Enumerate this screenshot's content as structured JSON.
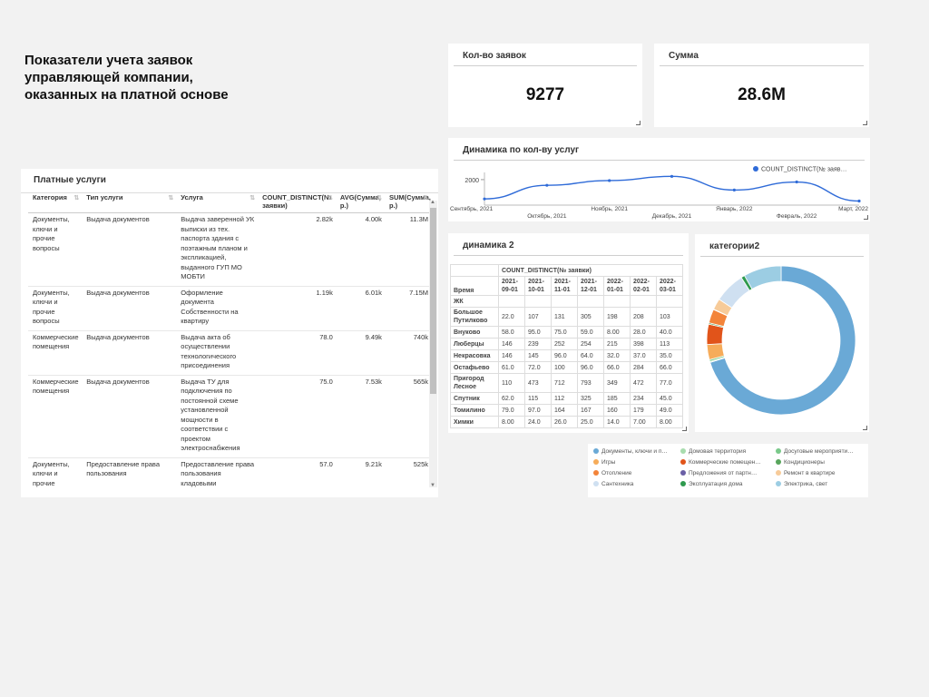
{
  "dashboard": {
    "title": "Показатели учета заявок управляющей компании, оказанных на платной основе"
  },
  "kpi_count": {
    "title": "Кол-во заявок",
    "value": "9277"
  },
  "kpi_sum": {
    "title": "Сумма",
    "value": "28.6M"
  },
  "services_table": {
    "title": "Платные услуги",
    "columns": [
      "Категория",
      "Тип услуги",
      "Услуга",
      "COUNT_DISTINCT(№ заявки)",
      "AVG(Сумма, р.)",
      "SUM(Сумма, р.)"
    ],
    "rows": [
      [
        "Документы, ключи и прочие вопросы",
        "Выдача документов",
        "Выдача заверенной УК выписки из тех. паспорта здания с поэтажным планом и экспликацией, выданного ГУП МО МОБТИ",
        "2.82k",
        "4.00k",
        "11.3M"
      ],
      [
        "Документы, ключи и прочие вопросы",
        "Выдача документов",
        "Оформление документа Собственности на квартиру",
        "1.19k",
        "6.01k",
        "7.15M"
      ],
      [
        "Коммерческие помещения",
        "Выдача документов",
        "Выдача акта об осуществлении технологического присоединения",
        "78.0",
        "9.49k",
        "740k"
      ],
      [
        "Коммерческие помещения",
        "Выдача документов",
        "Выдача ТУ для подключения по постоянной схеме установленной мощности в соответствии с проектом электроснабжения",
        "75.0",
        "7.53k",
        "565k"
      ],
      [
        "Документы, ключи и прочие вопросы",
        "Предоставление права пользования",
        "Предоставление права пользования кладовыми помещениями на территории ЖК",
        "57.0",
        "9.21k",
        "525k"
      ]
    ]
  },
  "chart_data": [
    {
      "type": "line",
      "title": "Динамика по кол-ву услуг",
      "x": [
        "Сентябрь, 2021",
        "Октябрь, 2021",
        "Ноябрь, 2021",
        "Декабрь, 2021",
        "Январь, 2022",
        "Февраль, 2022",
        "Март, 2022"
      ],
      "series": [
        {
          "name": "COUNT_DISTINCT(№ заяв…",
          "color": "#2f6bd8",
          "values": [
            1185,
            1760,
            1960,
            2138,
            1560,
            1900,
            1095
          ]
        }
      ],
      "ytick_label": "2000",
      "ylim": [
        1000,
        2150
      ],
      "grid": false,
      "legend": "top-right"
    },
    {
      "type": "pie",
      "title": "категории2",
      "donut": true,
      "labels": [
        "Документы, ключи и п…",
        "Домовая территория",
        "Досуговые мероприяти…",
        "Игры",
        "Коммерческие помещен…",
        "Кондиционеры",
        "Отопление",
        "Предложения от партн…",
        "Ремонт в квартире",
        "Сантехника",
        "Эксплуатация дома",
        "Электрика, свет"
      ],
      "colors": [
        "#6aa9d6",
        "#a8dcae",
        "#7ac98a",
        "#f6ac5a",
        "#e1541a",
        "#58a55c",
        "#f3843a",
        "#6a5fa6",
        "#f7cb99",
        "#cfe0f1",
        "#2e9a4e",
        "#9ccde3"
      ],
      "values": [
        70.2,
        0.2,
        0.4,
        3.3,
        4.4,
        0.3,
        3.0,
        0.1,
        2.4,
        6.7,
        0.8,
        8.2
      ]
    }
  ],
  "pivot": {
    "title": "динамика 2",
    "metric": "COUNT_DISTINCT(№ заявки)",
    "row_header": "ЖК",
    "col_header": "Время",
    "columns": [
      "2021-09-01",
      "2021-10-01",
      "2021-11-01",
      "2021-12-01",
      "2022-01-01",
      "2022-02-01",
      "2022-03-01"
    ],
    "rows": [
      {
        "name": "Большое Путилково",
        "values": [
          "22.0",
          "107",
          "131",
          "305",
          "198",
          "208",
          "103"
        ]
      },
      {
        "name": "Внуково",
        "values": [
          "58.0",
          "95.0",
          "75.0",
          "59.0",
          "8.00",
          "28.0",
          "40.0"
        ]
      },
      {
        "name": "Люберцы",
        "values": [
          "146",
          "239",
          "252",
          "254",
          "215",
          "398",
          "113"
        ]
      },
      {
        "name": "Некрасовка",
        "values": [
          "146",
          "145",
          "96.0",
          "64.0",
          "32.0",
          "37.0",
          "35.0"
        ]
      },
      {
        "name": "Остафьево",
        "values": [
          "61.0",
          "72.0",
          "100",
          "96.0",
          "66.0",
          "284",
          "66.0"
        ]
      },
      {
        "name": "Пригород Лесное",
        "values": [
          "110",
          "473",
          "712",
          "793",
          "349",
          "472",
          "77.0"
        ]
      },
      {
        "name": "Спутник",
        "values": [
          "62.0",
          "115",
          "112",
          "325",
          "185",
          "234",
          "45.0"
        ]
      },
      {
        "name": "Томилино",
        "values": [
          "79.0",
          "97.0",
          "164",
          "167",
          "160",
          "179",
          "49.0"
        ]
      },
      {
        "name": "Химки",
        "values": [
          "8.00",
          "24.0",
          "26.0",
          "25.0",
          "14.0",
          "7.00",
          "8.00"
        ]
      }
    ]
  }
}
